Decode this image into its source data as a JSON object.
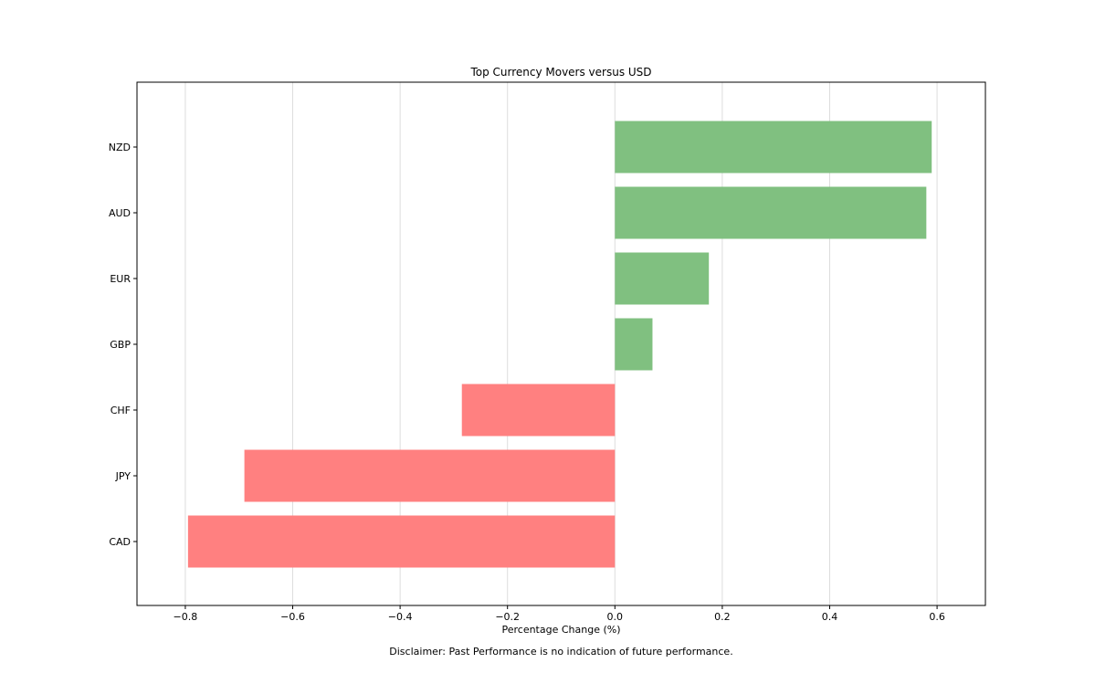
{
  "chart_data": {
    "type": "bar",
    "orientation": "horizontal",
    "title": "Top Currency Movers versus USD",
    "xlabel": "Percentage Change (%)",
    "ylabel": "",
    "categories": [
      "NZD",
      "AUD",
      "EUR",
      "GBP",
      "CHF",
      "JPY",
      "CAD"
    ],
    "values": [
      0.59,
      0.58,
      0.175,
      0.07,
      -0.285,
      -0.69,
      -0.795
    ],
    "xlim": [
      -0.89,
      0.69
    ],
    "xticks": [
      -0.8,
      -0.6,
      -0.4,
      -0.2,
      0.0,
      0.2,
      0.4,
      0.6
    ],
    "xtick_labels": [
      "−0.8",
      "−0.6",
      "−0.4",
      "−0.2",
      "0.0",
      "0.2",
      "0.4",
      "0.6"
    ],
    "grid": "vertical",
    "colors": {
      "positive": "#80c080",
      "negative": "#ff8080",
      "grid": "#dddddd",
      "axes": "#000000"
    },
    "footnote": "Disclaimer: Past Performance is no indication of future performance."
  }
}
